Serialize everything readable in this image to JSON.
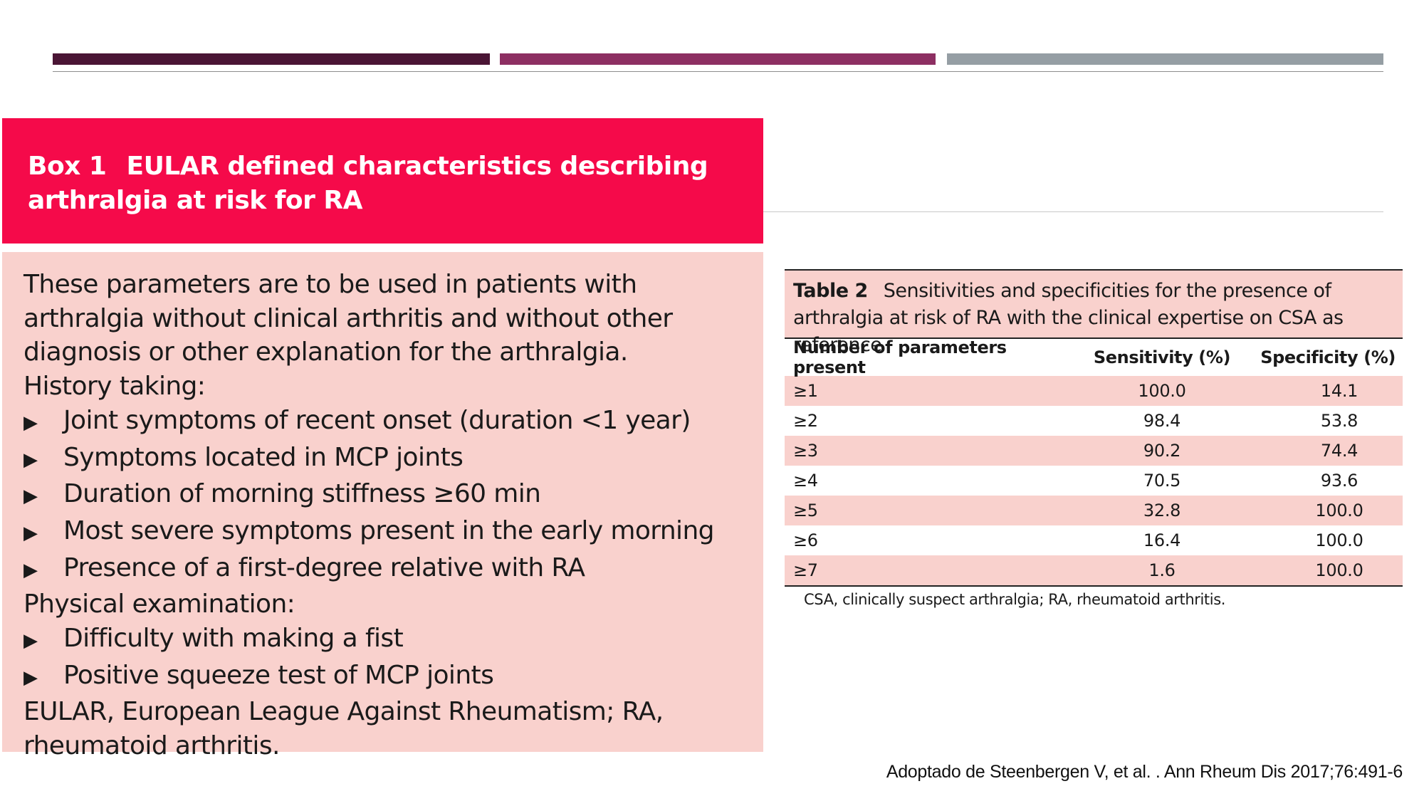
{
  "box": {
    "number": "Box 1",
    "title": "EULAR defined characteristics describing arthralgia at risk for RA",
    "intro": "These parameters are to be used in patients with arthralgia without clinical arthritis and without other diagnosis or other explanation for the arthralgia.",
    "history_heading": "History taking:",
    "history_items": [
      "Joint symptoms of recent onset (duration <1 year)",
      "Symptoms located in MCP joints",
      "Duration of morning stiffness ≥60 min",
      "Most severe symptoms present in the early morning",
      "Presence of a first-degree relative with RA"
    ],
    "exam_heading": "Physical examination:",
    "exam_items": [
      "Difficulty with making a fist",
      "Positive squeeze test of MCP joints"
    ],
    "footnote": "EULAR, European League Against Rheumatism; RA, rheumatoid arthritis.",
    "bullet_glyph": "▶"
  },
  "table": {
    "number": "Table 2",
    "caption": "Sensitivities and specificities for the presence of arthralgia at risk of RA with the clinical expertise on CSA as reference",
    "headers": [
      "Number of parameters present",
      "Sensitivity (%)",
      "Specificity (%)"
    ],
    "rows": [
      [
        "≥1",
        "100.0",
        "14.1"
      ],
      [
        "≥2",
        "98.4",
        "53.8"
      ],
      [
        "≥3",
        "90.2",
        "74.4"
      ],
      [
        "≥4",
        "70.5",
        "93.6"
      ],
      [
        "≥5",
        "32.8",
        "100.0"
      ],
      [
        "≥6",
        "16.4",
        "100.0"
      ],
      [
        "≥7",
        "1.6",
        "100.0"
      ]
    ],
    "note": "CSA, clinically suspect arthralgia; RA, rheumatoid arthritis."
  },
  "citation": "Adoptado de Steenbergen V, et al. . Ann Rheum Dis 2017;76:491-6",
  "colors": {
    "box_header": "#f50a4a",
    "box_body": "#f9d1cd",
    "bar_1": "#4a1535",
    "bar_2": "#8d2f62",
    "bar_3": "#959ea4"
  }
}
